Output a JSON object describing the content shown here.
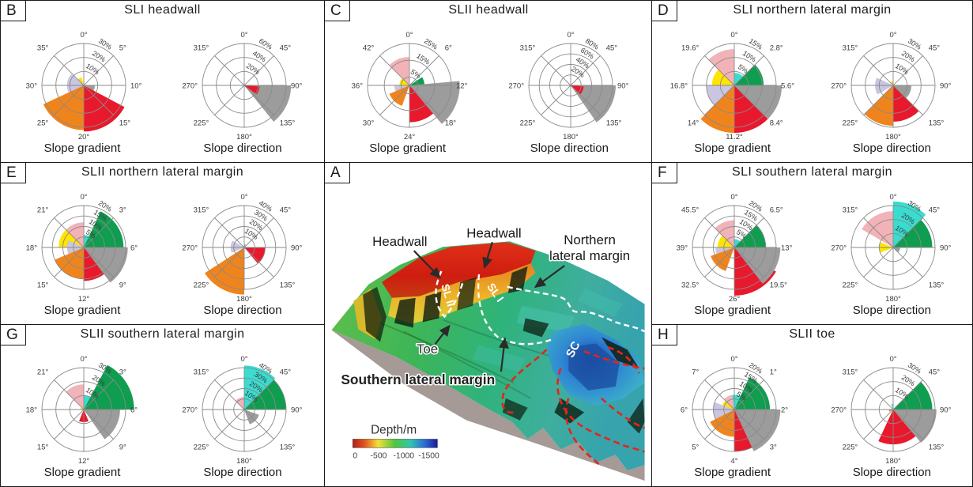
{
  "colors": {
    "red": "#e8192c",
    "orange": "#f0841c",
    "yellow": "#ffe400",
    "green": "#0f9d4f",
    "cyan": "#38ddd0",
    "pink": "#f2b3b8",
    "lavender": "#cac5e1",
    "gray": "#9c9c9c",
    "grid": "#8a8a8a",
    "map_red_dash": "#e82318"
  },
  "chart_data": [
    {
      "panel": "B",
      "title": "SLI headwall",
      "type": "rose",
      "roses": [
        {
          "caption": "Slope gradient",
          "unit": "%",
          "rings": [
            10,
            20,
            30
          ],
          "angle_labels": [
            "0°",
            "5°",
            "10°",
            "15°",
            "20°",
            "25°",
            "30°",
            "35°"
          ],
          "wedges": [
            {
              "color": "yellow",
              "from": 313,
              "to": 345,
              "value": 6
            },
            {
              "color": "lavender",
              "from": 240,
              "to": 312,
              "value": 12
            },
            {
              "color": "gray",
              "from": 90,
              "to": 118,
              "value": 8
            },
            {
              "color": "orange",
              "from": 180,
              "to": 245,
              "value": 32
            },
            {
              "color": "red",
              "from": 118,
              "to": 180,
              "value": 33
            }
          ]
        },
        {
          "caption": "Slope direction",
          "unit": "%",
          "rings": [
            20,
            40,
            60
          ],
          "angle_labels": [
            "0°",
            "45°",
            "90°",
            "135°",
            "180°",
            "225°",
            "270°",
            "315°"
          ],
          "wedges": [
            {
              "color": "gray",
              "from": 90,
              "to": 141,
              "value": 67
            },
            {
              "color": "red",
              "from": 94,
              "to": 126,
              "value": 22
            }
          ]
        }
      ]
    },
    {
      "panel": "C",
      "title": "SLII headwall",
      "type": "rose",
      "roses": [
        {
          "caption": "Slope gradient",
          "unit": "%",
          "rings": [
            5,
            15,
            25
          ],
          "angle_labels": [
            "0°",
            "6°",
            "12°",
            "18°",
            "24°",
            "30°",
            "36°",
            "42°"
          ],
          "wedges": [
            {
              "color": "pink",
              "from": 315,
              "to": 360,
              "value": 17
            },
            {
              "color": "yellow",
              "from": 270,
              "to": 315,
              "value": 6
            },
            {
              "color": "lavender",
              "from": 225,
              "to": 270,
              "value": 9
            },
            {
              "color": "orange",
              "from": 200,
              "to": 247,
              "value": 13
            },
            {
              "color": "red",
              "from": 112,
              "to": 180,
              "value": 22
            },
            {
              "color": "green",
              "from": 57,
              "to": 90,
              "value": 9
            },
            {
              "color": "gray",
              "from": 85,
              "to": 140,
              "value": 30
            }
          ]
        },
        {
          "caption": "Slope direction",
          "unit": "%",
          "rings": [
            20,
            40,
            60,
            80
          ],
          "angle_labels": [
            "0°",
            "45°",
            "90°",
            "135°",
            "180°",
            "225°",
            "270°",
            "315°"
          ],
          "wedges": [
            {
              "color": "gray",
              "from": 90,
              "to": 145,
              "value": 86
            },
            {
              "color": "red",
              "from": 94,
              "to": 133,
              "value": 25
            }
          ]
        }
      ]
    },
    {
      "panel": "D",
      "title": "SLI northern lateral margin",
      "type": "rose",
      "roses": [
        {
          "caption": "Slope gradient",
          "unit": "%",
          "rings": [
            5,
            10,
            15
          ],
          "angle_labels": [
            "0°",
            "2.8°",
            "5.6°",
            "8.4°",
            "11.2°",
            "14°",
            "16.8°",
            "19.6°"
          ],
          "wedges": [
            {
              "color": "pink",
              "from": 315,
              "to": 360,
              "value": 13
            },
            {
              "color": "yellow",
              "from": 270,
              "to": 315,
              "value": 8
            },
            {
              "color": "cyan",
              "from": 0,
              "to": 45,
              "value": 4.5
            },
            {
              "color": "green",
              "from": 45,
              "to": 90,
              "value": 10.5
            },
            {
              "color": "lavender",
              "from": 225,
              "to": 270,
              "value": 10
            },
            {
              "color": "orange",
              "from": 180,
              "to": 225,
              "value": 17
            },
            {
              "color": "red",
              "from": 135,
              "to": 180,
              "value": 17
            },
            {
              "color": "gray",
              "from": 90,
              "to": 135,
              "value": 17
            }
          ]
        },
        {
          "caption": "Slope direction",
          "unit": "%",
          "rings": [
            10,
            20,
            30
          ],
          "angle_labels": [
            "0°",
            "45°",
            "90°",
            "135°",
            "180°",
            "225°",
            "270°",
            "315°"
          ],
          "wedges": [
            {
              "color": "yellow",
              "from": 315,
              "to": 360,
              "value": 3
            },
            {
              "color": "lavender",
              "from": 240,
              "to": 295,
              "value": 13
            },
            {
              "color": "gray",
              "from": 90,
              "to": 135,
              "value": 13
            },
            {
              "color": "red",
              "from": 135,
              "to": 180,
              "value": 26
            },
            {
              "color": "orange",
              "from": 180,
              "to": 225,
              "value": 29
            }
          ]
        }
      ]
    },
    {
      "panel": "E",
      "title": "SLII northern lateral margin",
      "type": "rose",
      "roses": [
        {
          "caption": "Slope gradient",
          "unit": "%",
          "rings": [
            5,
            10,
            15,
            20
          ],
          "angle_labels": [
            "0°",
            "3°",
            "6°",
            "9°",
            "12°",
            "15°",
            "18°",
            "21°"
          ],
          "wedges": [
            {
              "color": "pink",
              "from": 315,
              "to": 360,
              "value": 12
            },
            {
              "color": "yellow",
              "from": 270,
              "to": 315,
              "value": 12
            },
            {
              "color": "lavender",
              "from": 247,
              "to": 295,
              "value": 8
            },
            {
              "color": "cyan",
              "from": 0,
              "to": 42,
              "value": 6
            },
            {
              "color": "green",
              "from": 25,
              "to": 90,
              "value": 19
            },
            {
              "color": "orange",
              "from": 180,
              "to": 247,
              "value": 15
            },
            {
              "color": "red",
              "from": 112,
              "to": 180,
              "value": 16
            },
            {
              "color": "gray",
              "from": 90,
              "to": 143,
              "value": 21
            }
          ]
        },
        {
          "caption": "Slope direction",
          "unit": "%",
          "rings": [
            10,
            20,
            30,
            40
          ],
          "angle_labels": [
            "0°",
            "45°",
            "90°",
            "135°",
            "180°",
            "225°",
            "270°",
            "315°"
          ],
          "wedges": [
            {
              "color": "lavender",
              "from": 247,
              "to": 300,
              "value": 13
            },
            {
              "color": "gray",
              "from": 0,
              "to": 28,
              "value": 3
            },
            {
              "color": "red",
              "from": 90,
              "to": 140,
              "value": 20
            },
            {
              "color": "orange",
              "from": 180,
              "to": 237,
              "value": 45
            }
          ]
        }
      ]
    },
    {
      "panel": "F",
      "title": "SLI southern lateral margin",
      "type": "rose",
      "roses": [
        {
          "caption": "Slope gradient",
          "unit": "%",
          "rings": [
            5,
            10,
            15,
            20
          ],
          "angle_labels": [
            "0°",
            "6.5°",
            "13°",
            "19.5°",
            "26°",
            "32.5°",
            "39°",
            "45.5°"
          ],
          "wedges": [
            {
              "color": "pink",
              "from": 315,
              "to": 360,
              "value": 13
            },
            {
              "color": "yellow",
              "from": 270,
              "to": 315,
              "value": 8
            },
            {
              "color": "cyan",
              "from": 0,
              "to": 45,
              "value": 4
            },
            {
              "color": "green",
              "from": 45,
              "to": 90,
              "value": 15
            },
            {
              "color": "lavender",
              "from": 225,
              "to": 270,
              "value": 9
            },
            {
              "color": "orange",
              "from": 200,
              "to": 250,
              "value": 12
            },
            {
              "color": "red",
              "from": 120,
              "to": 180,
              "value": 23
            },
            {
              "color": "gray",
              "from": 90,
              "to": 142,
              "value": 22
            }
          ]
        },
        {
          "caption": "Slope direction",
          "unit": "%",
          "rings": [
            10,
            20,
            30
          ],
          "angle_labels": [
            "0°",
            "45°",
            "90°",
            "135°",
            "180°",
            "225°",
            "270°",
            "315°"
          ],
          "wedges": [
            {
              "color": "pink",
              "from": 300,
              "to": 360,
              "value": 26
            },
            {
              "color": "yellow",
              "from": 248,
              "to": 292,
              "value": 10
            },
            {
              "color": "cyan",
              "from": 0,
              "to": 45,
              "value": 33
            },
            {
              "color": "green",
              "from": 45,
              "to": 90,
              "value": 28
            },
            {
              "color": "gray",
              "from": 95,
              "to": 135,
              "value": 5
            }
          ]
        }
      ]
    },
    {
      "panel": "G",
      "title": "SLII southern lateral margin",
      "type": "rose",
      "roses": [
        {
          "caption": "Slope gradient",
          "unit": "%",
          "rings": [
            10,
            20,
            30
          ],
          "angle_labels": [
            "0°",
            "3°",
            "6°",
            "9°",
            "12°",
            "15°",
            "18°",
            "21°"
          ],
          "wedges": [
            {
              "color": "pink",
              "from": 315,
              "to": 360,
              "value": 18
            },
            {
              "color": "yellow",
              "from": 270,
              "to": 315,
              "value": 2.5
            },
            {
              "color": "cyan",
              "from": 0,
              "to": 40,
              "value": 10
            },
            {
              "color": "green",
              "from": 28,
              "to": 90,
              "value": 36
            },
            {
              "color": "red",
              "from": 158,
              "to": 202,
              "value": 9
            },
            {
              "color": "gray",
              "from": 90,
              "to": 145,
              "value": 26
            }
          ]
        },
        {
          "caption": "Slope direction",
          "unit": "%",
          "rings": [
            10,
            20,
            30,
            40
          ],
          "angle_labels": [
            "0°",
            "45°",
            "90°",
            "135°",
            "180°",
            "225°",
            "270°",
            "315°"
          ],
          "wedges": [
            {
              "color": "pink",
              "from": 315,
              "to": 360,
              "value": 12
            },
            {
              "color": "cyan",
              "from": 0,
              "to": 45,
              "value": 42
            },
            {
              "color": "green",
              "from": 45,
              "to": 90,
              "value": 40
            },
            {
              "color": "gray",
              "from": 110,
              "to": 160,
              "value": 15
            }
          ]
        }
      ]
    },
    {
      "panel": "H",
      "title": "SLII toe",
      "type": "rose",
      "roses": [
        {
          "caption": "Slope gradient",
          "unit": "%",
          "rings": [
            5,
            10,
            15,
            20
          ],
          "angle_labels": [
            "0°",
            "1°",
            "2°",
            "3°",
            "4°",
            "5°",
            "6°",
            "7°"
          ],
          "wedges": [
            {
              "color": "pink",
              "from": 315,
              "to": 352,
              "value": 7
            },
            {
              "color": "yellow",
              "from": 272,
              "to": 315,
              "value": 6
            },
            {
              "color": "lavender",
              "from": 243,
              "to": 290,
              "value": 10
            },
            {
              "color": "orange",
              "from": 180,
              "to": 243,
              "value": 13
            },
            {
              "color": "red",
              "from": 130,
              "to": 180,
              "value": 20
            },
            {
              "color": "cyan",
              "from": 352,
              "to": 405,
              "value": 7
            },
            {
              "color": "green",
              "from": 25,
              "to": 90,
              "value": 17
            },
            {
              "color": "gray",
              "from": 90,
              "to": 155,
              "value": 22
            }
          ]
        },
        {
          "caption": "Slope direction",
          "unit": "%",
          "rings": [
            10,
            20,
            30
          ],
          "angle_labels": [
            "0°",
            "45°",
            "90°",
            "135°",
            "180°",
            "225°",
            "270°",
            "315°"
          ],
          "wedges": [
            {
              "color": "cyan",
              "from": 338,
              "to": 360,
              "value": 4
            },
            {
              "color": "orange",
              "from": 240,
              "to": 270,
              "value": 3
            },
            {
              "color": "red",
              "from": 140,
              "to": 205,
              "value": 25
            },
            {
              "color": "green",
              "from": 45,
              "to": 90,
              "value": 28
            },
            {
              "color": "gray",
              "from": 90,
              "to": 140,
              "value": 31
            }
          ]
        }
      ]
    }
  ],
  "map_panel": {
    "letter": "A",
    "labels": {
      "headwall_left": "Headwall",
      "headwall_center": "Headwall",
      "northern_line1": "Northern",
      "northern_line2": "lateral margin",
      "toe": "Toe",
      "southern": "Southern lateral margin",
      "sl2": "SL II",
      "sl1": "SL I",
      "sc": "SC"
    },
    "colorbar": {
      "title": "Depth/m",
      "ticks": [
        "0",
        "-500",
        "-1000",
        "-1500"
      ]
    }
  }
}
